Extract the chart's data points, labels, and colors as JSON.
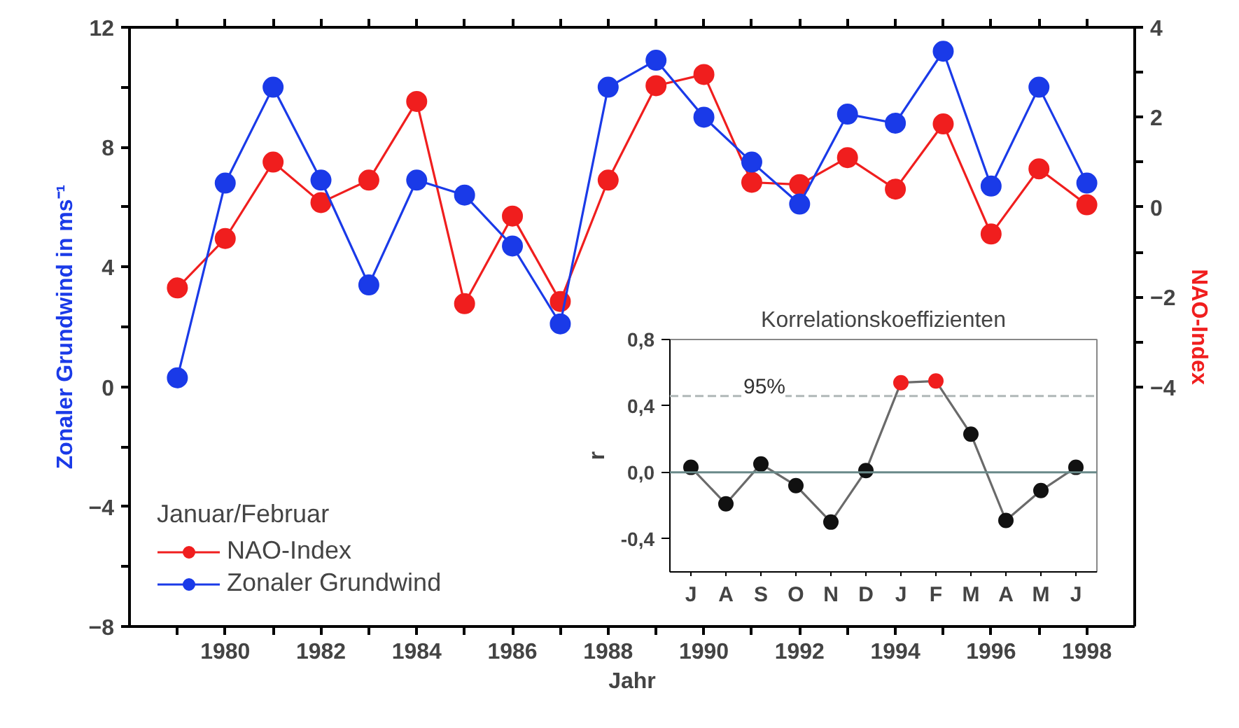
{
  "chart_data": [
    {
      "type": "line",
      "xlabel": "Jahr",
      "ylabel": "Zonaler Grundwind in ms⁻¹",
      "y2label": "NAO-Index",
      "legend_title": "Januar/Februar",
      "x": [
        1979,
        1980,
        1981,
        1982,
        1983,
        1984,
        1985,
        1986,
        1987,
        1988,
        1989,
        1990,
        1991,
        1992,
        1993,
        1994,
        1995,
        1996,
        1997,
        1998
      ],
      "series": [
        {
          "name": "NAO-Index",
          "color": "#f01e1e",
          "axis": "y2",
          "values": [
            -1.8,
            -0.7,
            1.0,
            0.1,
            0.6,
            2.35,
            -2.15,
            -0.2,
            -2.1,
            0.6,
            2.7,
            2.95,
            0.55,
            0.5,
            1.1,
            0.4,
            1.85,
            -0.6,
            0.85,
            0.05
          ]
        },
        {
          "name": "Zonaler Grundwind",
          "color": "#1a3ae8",
          "values": [
            0.3,
            6.8,
            10.0,
            6.9,
            3.4,
            6.9,
            6.4,
            4.7,
            2.1,
            10.0,
            10.9,
            9.0,
            7.5,
            6.1,
            9.1,
            8.8,
            11.2,
            6.7,
            10.0,
            6.8
          ]
        }
      ],
      "xlim": [
        1978,
        1999
      ],
      "xticks": [
        {
          "value": 1979,
          "label": null
        },
        1980,
        {
          "value": 1981,
          "label": null
        },
        1982,
        {
          "value": 1983,
          "label": null
        },
        1984,
        {
          "value": 1985,
          "label": null
        },
        1986,
        {
          "value": 1987,
          "label": null
        },
        1988,
        {
          "value": 1989,
          "label": null
        },
        1990,
        {
          "value": 1991,
          "label": null
        },
        1992,
        {
          "value": 1993,
          "label": null
        },
        1994,
        {
          "value": 1995,
          "label": null
        },
        1996,
        {
          "value": 1997,
          "label": null
        },
        1998
      ],
      "ylim": [
        -8,
        12
      ],
      "yticks": [
        -8,
        {
          "value": -6,
          "label": null
        },
        -4,
        {
          "value": -2,
          "label": null
        },
        0,
        {
          "value": 2,
          "label": null
        },
        4,
        {
          "value": 6,
          "label": null
        },
        8,
        {
          "value": 10,
          "label": null
        },
        12
      ],
      "y2lim": [
        -9.333,
        4
      ],
      "y2ticks": [
        -4,
        {
          "value": -3,
          "label": null
        },
        -2,
        {
          "value": -1,
          "label": null
        },
        0,
        {
          "value": 1,
          "label": null
        },
        2,
        {
          "value": 3,
          "label": null
        },
        4
      ],
      "marker": "circle",
      "grid": false,
      "legend": "bottom left"
    },
    {
      "type": "line",
      "title": "Korrelationskoeffizienten",
      "ylabel": "r",
      "categories": [
        "J",
        "A",
        "S",
        "O",
        "N",
        "D",
        "J",
        "F",
        "M",
        "A",
        "M",
        "J"
      ],
      "series": [
        {
          "color": "#6a6a6a",
          "colors": [
            "#111111",
            "#111111",
            "#111111",
            "#111111",
            "#111111",
            "#111111",
            "#f01e1e",
            "#f01e1e",
            "#111111",
            "#111111",
            "#111111",
            "#111111"
          ],
          "values": [
            0.03,
            -0.19,
            0.05,
            -0.08,
            -0.3,
            0.01,
            0.54,
            0.55,
            0.23,
            -0.29,
            -0.11,
            0.03
          ]
        }
      ],
      "ylim": [
        -0.6,
        0.8
      ],
      "yticks": [
        {
          "value": -0.4,
          "label": "-0,4"
        },
        {
          "value": 0,
          "label": "0,0"
        },
        {
          "value": 0.4,
          "label": "0,4"
        },
        {
          "value": 0.8,
          "label": "0,8"
        }
      ],
      "ref_lines": [
        {
          "axis": "y",
          "value": 0,
          "color": "#6a8a8a"
        },
        {
          "axis": "y",
          "value": 0.46,
          "color": "#b0b8b8",
          "line_style": "dashed"
        }
      ],
      "annotations": [
        {
          "text": "95%",
          "y": 0.46
        }
      ],
      "marker": "circle",
      "grid": false
    }
  ]
}
